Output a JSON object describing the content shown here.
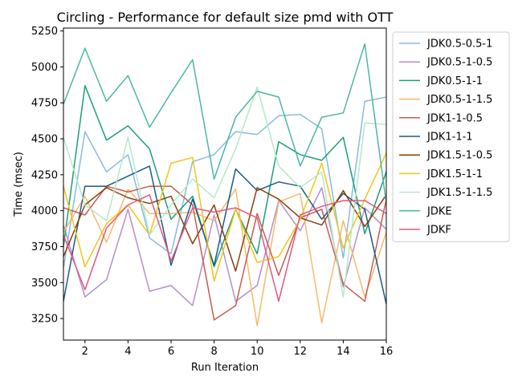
{
  "chart_data": {
    "type": "line",
    "title": "Circling - Performance for default size pmd with OTT",
    "xlabel": "Run Iteration",
    "ylabel": "Time (msec)",
    "xlim": [
      1,
      16
    ],
    "ylim": [
      3100,
      5270
    ],
    "xticks": [
      2,
      4,
      6,
      8,
      10,
      12,
      14,
      16
    ],
    "yticks": [
      3250,
      3500,
      3750,
      4000,
      4250,
      4500,
      4750,
      5000,
      5250
    ],
    "legend_position": "outside-right",
    "grid": false,
    "x": [
      1,
      2,
      3,
      4,
      5,
      6,
      7,
      8,
      9,
      10,
      11,
      12,
      13,
      14,
      15,
      16
    ],
    "series": [
      {
        "name": "JDK0.5-0.5-1",
        "color": "#85bcdf",
        "values": [
          3600,
          4550,
          4270,
          4390,
          3810,
          3700,
          4340,
          4390,
          4550,
          4530,
          4660,
          4670,
          4570,
          3670,
          4760,
          4790
        ]
      },
      {
        "name": "JDK0.5-1-0.5",
        "color": "#b38fcc",
        "values": [
          3900,
          3400,
          3520,
          4010,
          3440,
          3480,
          3340,
          3970,
          3370,
          3480,
          4070,
          3860,
          4160,
          3470,
          4020,
          3870
        ]
      },
      {
        "name": "JDK0.5-1-1",
        "color": "#1a9e7d",
        "values": [
          3750,
          4870,
          4490,
          4590,
          4430,
          3940,
          4100,
          3610,
          4010,
          3700,
          4480,
          4390,
          4350,
          4510,
          3840,
          4270
        ]
      },
      {
        "name": "JDK0.5-1-1.5",
        "color": "#f6b96a",
        "values": [
          3850,
          4100,
          3780,
          4150,
          3980,
          3980,
          3990,
          3930,
          4150,
          3200,
          4060,
          4120,
          3220,
          3930,
          3400,
          3850
        ]
      },
      {
        "name": "JDK1-1-0.5",
        "color": "#c85b50",
        "values": [
          4020,
          3970,
          4170,
          4130,
          4170,
          4170,
          4040,
          3240,
          3340,
          3980,
          3550,
          3950,
          4010,
          3490,
          3370,
          4080
        ]
      },
      {
        "name": "JDK1-1-1",
        "color": "#1e5a85",
        "values": [
          3370,
          4170,
          4170,
          4240,
          4310,
          3620,
          4080,
          3620,
          4290,
          4140,
          4200,
          4170,
          3940,
          4120,
          4010,
          3350
        ]
      },
      {
        "name": "JDK1.5-1-0.5",
        "color": "#8b3e07",
        "values": [
          3680,
          4040,
          4160,
          4090,
          4050,
          4100,
          3770,
          4040,
          3580,
          4160,
          4080,
          3950,
          3900,
          4140,
          3890,
          4110
        ]
      },
      {
        "name": "JDK1.5-1-1",
        "color": "#f1c514",
        "values": [
          4170,
          3610,
          3910,
          4040,
          3830,
          4330,
          4370,
          3510,
          4010,
          3640,
          3680,
          3940,
          4330,
          3740,
          4080,
          4400
        ]
      },
      {
        "name": "JDK1.5-1-1.5",
        "color": "#b6e8c6",
        "values": [
          4510,
          4040,
          3930,
          4510,
          3830,
          4040,
          4220,
          4090,
          4430,
          4860,
          4310,
          4160,
          4270,
          3400,
          4610,
          4600
        ]
      },
      {
        "name": "JDKE",
        "color": "#4cb6a5",
        "values": [
          4740,
          5130,
          4760,
          4940,
          4580,
          4820,
          5050,
          4220,
          4650,
          4830,
          4790,
          4310,
          4650,
          4680,
          5160,
          4050
        ]
      },
      {
        "name": "JDKF",
        "color": "#e4577f",
        "values": [
          3830,
          3450,
          3880,
          4040,
          4110,
          3650,
          4020,
          3990,
          4020,
          3950,
          3370,
          3970,
          4030,
          4070,
          4070,
          3980
        ]
      }
    ]
  }
}
